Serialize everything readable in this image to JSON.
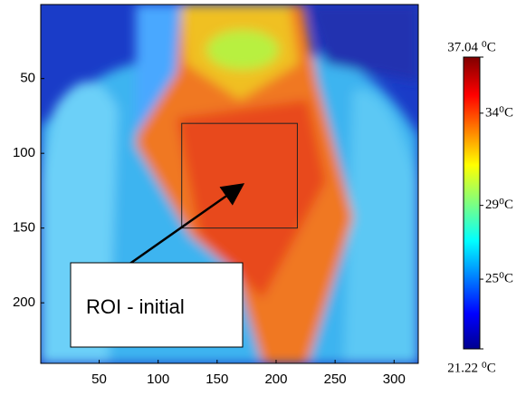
{
  "chart_data": {
    "type": "image",
    "xlim": [
      0.5,
      320.5
    ],
    "ylim": [
      240.5,
      0.5
    ],
    "xticks": [
      50,
      100,
      150,
      200,
      250,
      300
    ],
    "yticks": [
      50,
      100,
      150,
      200
    ],
    "colorbar": {
      "clim": [
        21.22,
        37.04
      ],
      "ticks": [
        {
          "value": 37.04,
          "label": "37.04 ⁰C"
        },
        {
          "value": 34,
          "label": "34⁰C"
        },
        {
          "value": 29,
          "label": "29⁰C"
        },
        {
          "value": 25,
          "label": "25⁰C"
        },
        {
          "value": 21.22,
          "label": "21.22 ⁰C"
        }
      ]
    },
    "roi": {
      "x": [
        120,
        218
      ],
      "y": [
        80,
        150
      ]
    },
    "annotation": "ROI - initial"
  }
}
